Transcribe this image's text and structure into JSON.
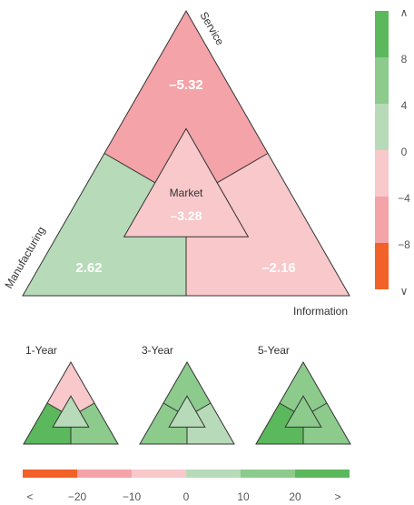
{
  "chart_data": {
    "type": "ternary-style-box",
    "main": {
      "corner_labels": {
        "top": "Service",
        "left": "Manufacturing",
        "right": "Information"
      },
      "center_label": "Market",
      "values": {
        "service": "–5.32",
        "manufacturing": "2.62",
        "information": "–2.16",
        "market": "–3.28"
      },
      "colors": {
        "service": "#f4a3a8",
        "manufacturing": "#b7dbb8",
        "information": "#f8c8cb",
        "market": "#f8c8cb"
      }
    },
    "main_legend": {
      "ticks": [
        "∧",
        "8",
        "4",
        "0",
        "−4",
        "−8",
        "∨"
      ],
      "colors": [
        "#5cb85c",
        "#8ccb8c",
        "#b7dbb8",
        "#f8c8cb",
        "#f4a3a8",
        "#f26128"
      ]
    },
    "small_multiples": [
      {
        "label": "1-Year",
        "colors": {
          "top": "#f8c8cb",
          "left": "#5cb85c",
          "right": "#8ccb8c",
          "center": "#b7dbb8"
        }
      },
      {
        "label": "3-Year",
        "colors": {
          "top": "#8ccb8c",
          "left": "#8ccb8c",
          "right": "#b7dbb8",
          "center": "#b7dbb8"
        }
      },
      {
        "label": "5-Year",
        "colors": {
          "top": "#8ccb8c",
          "left": "#5cb85c",
          "right": "#8ccb8c",
          "center": "#8ccb8c"
        }
      }
    ],
    "bottom_legend": {
      "ticks": [
        "<",
        "−20",
        "−10",
        "0",
        "10",
        "20",
        ">"
      ],
      "colors": [
        "#f26128",
        "#f4a3a8",
        "#f8c8cb",
        "#b7dbb8",
        "#8ccb8c",
        "#5cb85c"
      ]
    }
  }
}
